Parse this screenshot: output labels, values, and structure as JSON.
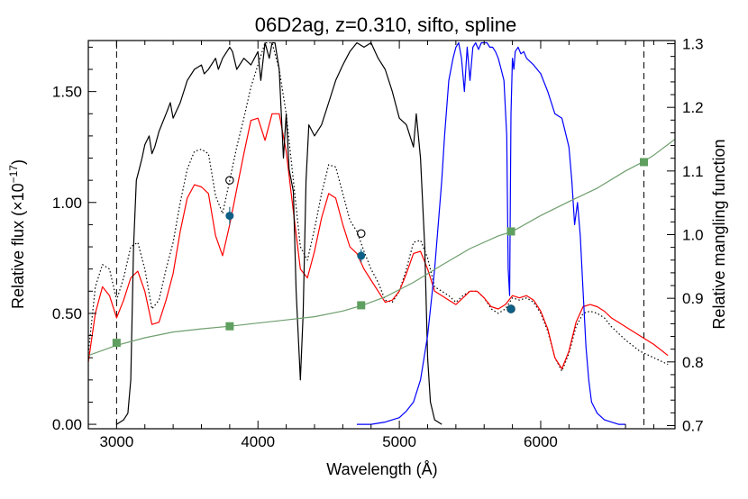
{
  "chart_data": {
    "type": "line",
    "title": "06D2ag, z=0.310, sifto, spline",
    "xlabel": "Wavelength (Å)",
    "ylabel_base": "Relative flux (×10",
    "ylabel_exp": "−17",
    "ylabel_close": ")",
    "y2label": "Relative mangling function",
    "xlim": [
      2800,
      6950
    ],
    "ylim": [
      -0.02,
      1.73
    ],
    "y2lim": [
      0.695,
      1.305
    ],
    "x_ticks": [
      3000,
      4000,
      5000,
      6000
    ],
    "x_tick_labels": [
      "3000",
      "4000",
      "5000",
      "6000"
    ],
    "y_ticks": [
      0.0,
      0.5,
      1.0,
      1.5
    ],
    "y_tick_labels": [
      "0.00",
      "0.50",
      "1.00",
      "1.50"
    ],
    "y2_ticks": [
      0.7,
      0.8,
      0.9,
      1.0,
      1.1,
      1.2,
      1.3
    ],
    "y2_tick_labels": [
      "0.7",
      "0.8",
      "0.9",
      "1.0",
      "1.1",
      "1.2",
      "1.3"
    ],
    "vlines": [
      3000,
      6730
    ],
    "series": [
      {
        "style": "dotted",
        "color": "#000000",
        "axis": "left",
        "x": [
          2800,
          2850,
          2900,
          2950,
          3000,
          3050,
          3100,
          3150,
          3200,
          3250,
          3300,
          3350,
          3400,
          3450,
          3500,
          3550,
          3600,
          3650,
          3700,
          3750,
          3800,
          3850,
          3900,
          3950,
          4000,
          4050,
          4100,
          4150,
          4200,
          4250,
          4300,
          4350,
          4400,
          4450,
          4500,
          4550,
          4600,
          4650,
          4700,
          4750,
          4800,
          4850,
          4900,
          4950,
          5000,
          5050,
          5100,
          5150,
          5200,
          5250,
          5300,
          5350,
          5400,
          5450,
          5500,
          5550,
          5600,
          5650,
          5700,
          5750,
          5800,
          5850,
          5900,
          5950,
          6000,
          6050,
          6100,
          6150,
          6200,
          6250,
          6300,
          6350,
          6400,
          6450,
          6500,
          6600,
          6700,
          6800,
          6900
        ],
        "y": [
          0.32,
          0.62,
          0.72,
          0.7,
          0.56,
          0.66,
          0.8,
          0.82,
          0.7,
          0.52,
          0.56,
          0.7,
          0.82,
          1.0,
          1.15,
          1.23,
          1.24,
          1.22,
          1.03,
          0.95,
          1.1,
          1.25,
          1.38,
          1.52,
          1.62,
          1.72,
          1.72,
          1.6,
          1.4,
          1.1,
          0.8,
          0.74,
          0.88,
          1.04,
          1.17,
          1.16,
          1.04,
          0.92,
          0.87,
          0.78,
          0.7,
          0.64,
          0.56,
          0.55,
          0.6,
          0.7,
          0.82,
          0.83,
          0.75,
          0.62,
          0.6,
          0.58,
          0.55,
          0.58,
          0.6,
          0.6,
          0.57,
          0.52,
          0.5,
          0.52,
          0.57,
          0.56,
          0.57,
          0.55,
          0.5,
          0.42,
          0.3,
          0.24,
          0.32,
          0.44,
          0.5,
          0.51,
          0.5,
          0.48,
          0.44,
          0.38,
          0.33,
          0.3,
          0.27
        ]
      },
      {
        "style": "solid",
        "color": "#ff0000",
        "axis": "left",
        "x": [
          2800,
          2850,
          2900,
          2950,
          3000,
          3050,
          3100,
          3150,
          3200,
          3250,
          3300,
          3350,
          3400,
          3450,
          3500,
          3550,
          3600,
          3650,
          3700,
          3750,
          3800,
          3850,
          3900,
          3950,
          4000,
          4050,
          4100,
          4150,
          4200,
          4250,
          4300,
          4350,
          4400,
          4450,
          4500,
          4550,
          4600,
          4650,
          4700,
          4750,
          4800,
          4850,
          4900,
          4950,
          5000,
          5050,
          5100,
          5150,
          5200,
          5250,
          5300,
          5350,
          5400,
          5450,
          5500,
          5550,
          5600,
          5650,
          5700,
          5750,
          5800,
          5850,
          5900,
          5950,
          6000,
          6050,
          6100,
          6150,
          6200,
          6250,
          6300,
          6350,
          6400,
          6450,
          6500,
          6600,
          6700,
          6800,
          6900
        ],
        "y": [
          0.28,
          0.5,
          0.62,
          0.58,
          0.48,
          0.56,
          0.66,
          0.69,
          0.6,
          0.45,
          0.46,
          0.56,
          0.68,
          0.87,
          1.02,
          1.08,
          1.07,
          1.04,
          0.85,
          0.76,
          0.9,
          1.06,
          1.22,
          1.37,
          1.38,
          1.28,
          1.4,
          1.4,
          1.23,
          0.96,
          0.7,
          0.66,
          0.78,
          0.93,
          1.04,
          1.02,
          0.9,
          0.8,
          0.77,
          0.7,
          0.65,
          0.6,
          0.55,
          0.56,
          0.6,
          0.68,
          0.77,
          0.78,
          0.7,
          0.6,
          0.58,
          0.56,
          0.54,
          0.57,
          0.6,
          0.6,
          0.57,
          0.53,
          0.52,
          0.54,
          0.58,
          0.57,
          0.58,
          0.56,
          0.51,
          0.43,
          0.3,
          0.25,
          0.33,
          0.46,
          0.53,
          0.54,
          0.53,
          0.51,
          0.48,
          0.44,
          0.4,
          0.36,
          0.31
        ]
      },
      {
        "style": "solid",
        "color": "#000000",
        "axis": "left",
        "x": [
          3000,
          3050,
          3080,
          3100,
          3120,
          3140,
          3160,
          3180,
          3200,
          3230,
          3250,
          3270,
          3300,
          3350,
          3380,
          3400,
          3450,
          3500,
          3550,
          3600,
          3620,
          3650,
          3700,
          3720,
          3750,
          3800,
          3820,
          3850,
          3900,
          3950,
          4000,
          4020,
          4050,
          4080,
          4100,
          4120,
          4150,
          4180,
          4200,
          4220,
          4250,
          4270,
          4300,
          4320,
          4340,
          4360,
          4400,
          4450,
          4500,
          4550,
          4600,
          4650,
          4700,
          4750,
          4800,
          4850,
          4900,
          4950,
          5000,
          5050,
          5100,
          5120,
          5150,
          5180,
          5200,
          5220,
          5250,
          5300
        ],
        "y": [
          0,
          0.02,
          0.05,
          0.2,
          0.8,
          1.1,
          1.15,
          1.2,
          1.26,
          1.3,
          1.22,
          1.25,
          1.32,
          1.4,
          1.45,
          1.38,
          1.45,
          1.55,
          1.6,
          1.62,
          1.58,
          1.6,
          1.65,
          1.6,
          1.65,
          1.7,
          1.68,
          1.6,
          1.65,
          1.62,
          1.68,
          1.55,
          1.72,
          1.65,
          1.72,
          1.72,
          1.6,
          1.2,
          1.4,
          1.15,
          1.05,
          0.6,
          0.2,
          0.5,
          1.1,
          1.35,
          1.3,
          1.35,
          1.45,
          1.55,
          1.62,
          1.68,
          1.72,
          1.7,
          1.72,
          1.65,
          1.6,
          1.5,
          1.38,
          1.35,
          1.25,
          1.4,
          1.2,
          0.8,
          0.3,
          0.1,
          0.02,
          0
        ]
      },
      {
        "style": "solid",
        "color": "#0000ff",
        "axis": "left",
        "x": [
          4700,
          4800,
          4900,
          5000,
          5050,
          5100,
          5150,
          5200,
          5250,
          5300,
          5320,
          5350,
          5380,
          5400,
          5420,
          5440,
          5460,
          5480,
          5500,
          5520,
          5540,
          5560,
          5580,
          5600,
          5620,
          5640,
          5660,
          5680,
          5700,
          5720,
          5740,
          5760,
          5770,
          5780,
          5790,
          5800,
          5810,
          5820,
          5840,
          5860,
          5880,
          5900,
          5950,
          6000,
          6050,
          6100,
          6150,
          6200,
          6220,
          6240,
          6260,
          6280,
          6300,
          6320,
          6340,
          6360,
          6400,
          6450,
          6500,
          6550,
          6600
        ],
        "y": [
          0,
          0,
          0.01,
          0.03,
          0.06,
          0.1,
          0.2,
          0.4,
          0.7,
          1.1,
          1.3,
          1.55,
          1.65,
          1.7,
          1.72,
          1.65,
          1.5,
          1.7,
          1.55,
          1.7,
          1.72,
          1.69,
          1.72,
          1.72,
          1.72,
          1.7,
          1.7,
          1.68,
          1.65,
          1.6,
          1.55,
          1.3,
          0.7,
          0.58,
          1.4,
          1.65,
          1.6,
          1.68,
          1.7,
          1.67,
          1.68,
          1.65,
          1.62,
          1.58,
          1.5,
          1.4,
          1.38,
          1.25,
          1.1,
          0.9,
          1.0,
          0.85,
          0.6,
          0.35,
          0.2,
          0.1,
          0.05,
          0.02,
          0.01,
          0,
          0
        ]
      },
      {
        "style": "solid",
        "color": "#6e9f6e",
        "axis": "right",
        "x": [
          2800,
          3000,
          3200,
          3400,
          3600,
          3800,
          4000,
          4200,
          4400,
          4600,
          4740,
          4900,
          5100,
          5300,
          5500,
          5700,
          5800,
          6000,
          6200,
          6400,
          6600,
          6730,
          6800,
          6950
        ],
        "y": [
          0.81,
          0.826,
          0.838,
          0.847,
          0.852,
          0.856,
          0.861,
          0.866,
          0.871,
          0.88,
          0.889,
          0.902,
          0.925,
          0.952,
          0.978,
          0.998,
          1.005,
          1.03,
          1.052,
          1.073,
          1.1,
          1.115,
          1.125,
          1.15
        ]
      }
    ],
    "mangling_points": {
      "x": [
        3000,
        3800,
        4730,
        5790,
        6730
      ],
      "y": [
        0.83,
        0.856,
        0.889,
        1.005,
        1.114
      ]
    },
    "observed_points": {
      "x": [
        3800,
        4730,
        5790
      ],
      "y": [
        0.94,
        0.76,
        0.52
      ],
      "yerr": [
        0.04,
        0.03,
        0.02
      ]
    },
    "synthetic_points": {
      "x": [
        3800,
        4730,
        5790
      ],
      "y": [
        1.1,
        0.86,
        0.52
      ]
    }
  }
}
